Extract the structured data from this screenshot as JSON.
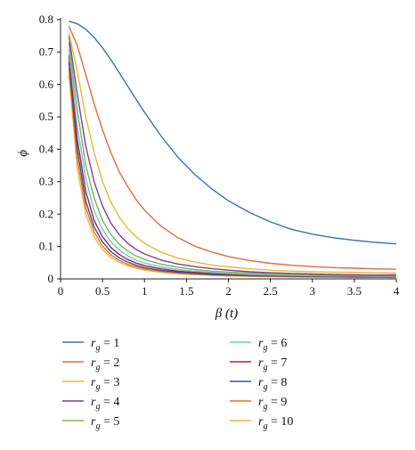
{
  "chart_data": {
    "type": "line",
    "xlabel": "β (t)",
    "ylabel": "ϕ",
    "xlim": [
      0,
      4
    ],
    "ylim": [
      0,
      0.8
    ],
    "x_ticks": [
      "0",
      "0.5",
      "1",
      "1.5",
      "2",
      "2.5",
      "3",
      "3.5",
      "4"
    ],
    "y_ticks": [
      "0",
      "0.1",
      "0.2",
      "0.3",
      "0.4",
      "0.5",
      "0.6",
      "0.7",
      "0.8"
    ],
    "grid": false,
    "legend_position": "bottom",
    "legend_prefix": "r",
    "legend_subscript": "g",
    "x": [
      0.1,
      0.2,
      0.3,
      0.4,
      0.5,
      0.6,
      0.7,
      0.8,
      0.9,
      1.0,
      1.2,
      1.4,
      1.6,
      1.8,
      2.0,
      2.25,
      2.5,
      2.75,
      3.0,
      3.25,
      3.5,
      3.75,
      4.0
    ],
    "series": [
      {
        "name": "= 1",
        "color": "#3a6fb5",
        "values": [
          0.795,
          0.787,
          0.77,
          0.745,
          0.713,
          0.676,
          0.636,
          0.595,
          0.554,
          0.514,
          0.44,
          0.375,
          0.322,
          0.278,
          0.241,
          0.205,
          0.176,
          0.153,
          0.138,
          0.127,
          0.119,
          0.113,
          0.108
        ]
      },
      {
        "name": "= 2",
        "color": "#e06b3a",
        "values": [
          0.78,
          0.72,
          0.63,
          0.54,
          0.46,
          0.39,
          0.33,
          0.285,
          0.245,
          0.212,
          0.162,
          0.127,
          0.101,
          0.083,
          0.069,
          0.057,
          0.048,
          0.042,
          0.038,
          0.035,
          0.033,
          0.031,
          0.03
        ]
      },
      {
        "name": "= 3",
        "color": "#e8b830",
        "values": [
          0.76,
          0.64,
          0.5,
          0.39,
          0.3,
          0.237,
          0.19,
          0.156,
          0.13,
          0.11,
          0.082,
          0.064,
          0.052,
          0.043,
          0.037,
          0.031,
          0.027,
          0.024,
          0.022,
          0.021,
          0.02,
          0.019,
          0.018
        ]
      },
      {
        "name": "= 4",
        "color": "#7b3f98",
        "values": [
          0.75,
          0.57,
          0.41,
          0.3,
          0.225,
          0.172,
          0.136,
          0.11,
          0.091,
          0.077,
          0.058,
          0.046,
          0.038,
          0.032,
          0.027,
          0.022,
          0.019,
          0.017,
          0.015,
          0.014,
          0.013,
          0.012,
          0.012
        ]
      },
      {
        "name": "= 5",
        "color": "#7ab648",
        "values": [
          0.73,
          0.52,
          0.35,
          0.25,
          0.18,
          0.137,
          0.107,
          0.086,
          0.071,
          0.06,
          0.045,
          0.036,
          0.029,
          0.024,
          0.021,
          0.018,
          0.015,
          0.013,
          0.012,
          0.011,
          0.01,
          0.01,
          0.009
        ]
      },
      {
        "name": "= 6",
        "color": "#6fc3e6",
        "values": [
          0.71,
          0.47,
          0.31,
          0.21,
          0.152,
          0.114,
          0.089,
          0.071,
          0.058,
          0.049,
          0.037,
          0.029,
          0.024,
          0.02,
          0.017,
          0.014,
          0.012,
          0.011,
          0.01,
          0.009,
          0.009,
          0.008,
          0.008
        ]
      },
      {
        "name": "= 7",
        "color": "#a3233a",
        "values": [
          0.69,
          0.43,
          0.27,
          0.18,
          0.13,
          0.097,
          0.075,
          0.06,
          0.049,
          0.041,
          0.031,
          0.024,
          0.02,
          0.017,
          0.014,
          0.012,
          0.01,
          0.009,
          0.008,
          0.008,
          0.007,
          0.007,
          0.007
        ]
      },
      {
        "name": "= 8",
        "color": "#2e5a9c",
        "values": [
          0.67,
          0.4,
          0.24,
          0.16,
          0.114,
          0.084,
          0.065,
          0.052,
          0.042,
          0.035,
          0.026,
          0.021,
          0.017,
          0.014,
          0.012,
          0.01,
          0.009,
          0.008,
          0.007,
          0.007,
          0.006,
          0.006,
          0.006
        ]
      },
      {
        "name": "= 9",
        "color": "#ea6f27",
        "values": [
          0.65,
          0.37,
          0.22,
          0.145,
          0.101,
          0.074,
          0.057,
          0.045,
          0.037,
          0.031,
          0.023,
          0.018,
          0.015,
          0.012,
          0.011,
          0.009,
          0.008,
          0.007,
          0.006,
          0.006,
          0.005,
          0.005,
          0.005
        ]
      },
      {
        "name": "= 10",
        "color": "#f0b43c",
        "values": [
          0.63,
          0.34,
          0.2,
          0.13,
          0.09,
          0.066,
          0.051,
          0.04,
          0.033,
          0.027,
          0.02,
          0.016,
          0.013,
          0.011,
          0.009,
          0.008,
          0.007,
          0.006,
          0.006,
          0.005,
          0.005,
          0.005,
          0.004
        ]
      }
    ]
  }
}
